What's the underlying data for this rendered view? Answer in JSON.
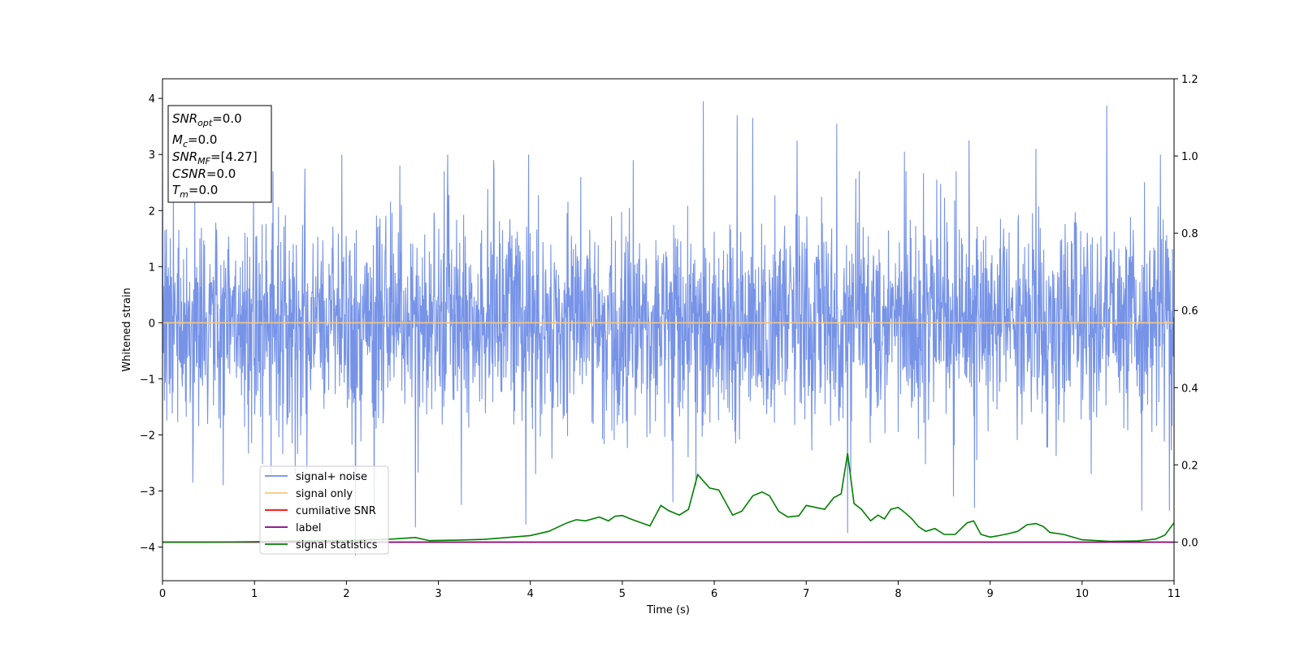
{
  "chart_data": {
    "type": "line",
    "xlabel": "Time (s)",
    "ylabel": "Whitened strain",
    "xlim": [
      0,
      11
    ],
    "ylim": [
      -4.6,
      4.35
    ],
    "ylim_right": [
      -0.1,
      1.2
    ],
    "x_ticks": [
      0,
      1,
      2,
      3,
      4,
      5,
      6,
      7,
      8,
      9,
      10,
      11
    ],
    "y_ticks": [
      -4,
      -3,
      -2,
      -1,
      0,
      1,
      2,
      3,
      4
    ],
    "y_ticks_right": [
      0.0,
      0.2,
      0.4,
      0.6,
      0.8,
      1.0,
      1.2
    ],
    "grid": false,
    "legend_position": "lower-left",
    "annotation_box": {
      "position": "upper-left",
      "lines": [
        {
          "base": "SNR",
          "sub": "opt",
          "value": "=0.0"
        },
        {
          "base": "M",
          "sub": "c",
          "value": "=0.0"
        },
        {
          "base": "SNR",
          "sub": "MF",
          "value": "=[4.27]"
        },
        {
          "base": "CSNR",
          "sub": "",
          "value": "=0.0"
        },
        {
          "base": "T",
          "sub": "m",
          "value": "=0.0"
        }
      ]
    },
    "series": [
      {
        "name": "signal+ noise",
        "color": "#6f8de6",
        "axis": "left",
        "kind": "noise",
        "envelope_typical": [
          -2.0,
          2.0
        ],
        "peaks": [
          {
            "x": 0.12,
            "y": 2.4
          },
          {
            "x": 0.35,
            "y": 2.3
          },
          {
            "x": 0.99,
            "y": 2.4
          },
          {
            "x": 1.2,
            "y": 2.7
          },
          {
            "x": 1.55,
            "y": 2.75
          },
          {
            "x": 1.95,
            "y": 3.0
          },
          {
            "x": 2.58,
            "y": 2.8
          },
          {
            "x": 3.1,
            "y": 3.0
          },
          {
            "x": 3.6,
            "y": 2.9
          },
          {
            "x": 3.98,
            "y": 3.0
          },
          {
            "x": 4.55,
            "y": 2.6
          },
          {
            "x": 5.12,
            "y": 2.9
          },
          {
            "x": 5.88,
            "y": 3.95
          },
          {
            "x": 6.25,
            "y": 3.7
          },
          {
            "x": 6.42,
            "y": 3.65
          },
          {
            "x": 6.9,
            "y": 3.25
          },
          {
            "x": 7.33,
            "y": 3.55
          },
          {
            "x": 8.07,
            "y": 3.05
          },
          {
            "x": 8.77,
            "y": 3.25
          },
          {
            "x": 9.5,
            "y": 3.1
          },
          {
            "x": 10.27,
            "y": 3.87
          },
          {
            "x": 10.85,
            "y": 3.0
          }
        ],
        "troughs": [
          {
            "x": 0.33,
            "y": -2.85
          },
          {
            "x": 0.66,
            "y": -2.9
          },
          {
            "x": 2.1,
            "y": -4.15
          },
          {
            "x": 2.3,
            "y": -3.5
          },
          {
            "x": 2.75,
            "y": -3.65
          },
          {
            "x": 3.95,
            "y": -3.6
          },
          {
            "x": 3.25,
            "y": -3.25
          },
          {
            "x": 5.55,
            "y": -3.2
          },
          {
            "x": 5.8,
            "y": -2.9
          },
          {
            "x": 7.45,
            "y": -3.75
          },
          {
            "x": 8.6,
            "y": -3.1
          },
          {
            "x": 8.83,
            "y": -3.3
          },
          {
            "x": 10.65,
            "y": -3.35
          },
          {
            "x": 10.95,
            "y": -3.35
          }
        ]
      },
      {
        "name": "signal only",
        "color": "#f5c77e",
        "axis": "left",
        "x": [
          0,
          11
        ],
        "y": [
          0,
          0
        ]
      },
      {
        "name": "cumilative SNR",
        "color": "#ff0000",
        "axis": "right",
        "x": [
          0,
          11
        ],
        "y": [
          0,
          0
        ]
      },
      {
        "name": "label",
        "color": "#800080",
        "axis": "right",
        "x": [
          0,
          11
        ],
        "y": [
          0,
          0
        ]
      },
      {
        "name": "signal statistics",
        "color": "#008000",
        "axis": "right",
        "x": [
          0,
          0.5,
          1.0,
          1.5,
          2.0,
          2.3,
          2.5,
          2.75,
          2.9,
          3.2,
          3.5,
          3.8,
          4.0,
          4.2,
          4.4,
          4.5,
          4.6,
          4.75,
          4.85,
          4.92,
          5.0,
          5.1,
          5.3,
          5.42,
          5.5,
          5.62,
          5.72,
          5.82,
          5.95,
          6.05,
          6.2,
          6.3,
          6.42,
          6.52,
          6.6,
          6.7,
          6.8,
          6.92,
          7.0,
          7.1,
          7.2,
          7.3,
          7.38,
          7.45,
          7.52,
          7.6,
          7.7,
          7.78,
          7.85,
          7.92,
          8.0,
          8.08,
          8.15,
          8.22,
          8.3,
          8.4,
          8.5,
          8.62,
          8.75,
          8.82,
          8.9,
          9.0,
          9.1,
          9.2,
          9.3,
          9.4,
          9.5,
          9.58,
          9.65,
          9.8,
          10.0,
          10.3,
          10.6,
          10.8,
          10.9,
          11.0
        ],
        "y": [
          0.0,
          0.0,
          0.001,
          0.003,
          0.004,
          0.006,
          0.008,
          0.012,
          0.004,
          0.005,
          0.007,
          0.013,
          0.017,
          0.028,
          0.05,
          0.058,
          0.055,
          0.065,
          0.055,
          0.067,
          0.069,
          0.059,
          0.042,
          0.095,
          0.082,
          0.07,
          0.085,
          0.175,
          0.14,
          0.135,
          0.07,
          0.08,
          0.12,
          0.13,
          0.12,
          0.08,
          0.065,
          0.068,
          0.095,
          0.09,
          0.085,
          0.115,
          0.125,
          0.23,
          0.1,
          0.085,
          0.055,
          0.07,
          0.06,
          0.085,
          0.09,
          0.075,
          0.06,
          0.04,
          0.028,
          0.035,
          0.02,
          0.02,
          0.05,
          0.055,
          0.02,
          0.013,
          0.017,
          0.022,
          0.028,
          0.045,
          0.048,
          0.04,
          0.025,
          0.02,
          0.006,
          0.002,
          0.003,
          0.008,
          0.018,
          0.05
        ]
      }
    ]
  }
}
